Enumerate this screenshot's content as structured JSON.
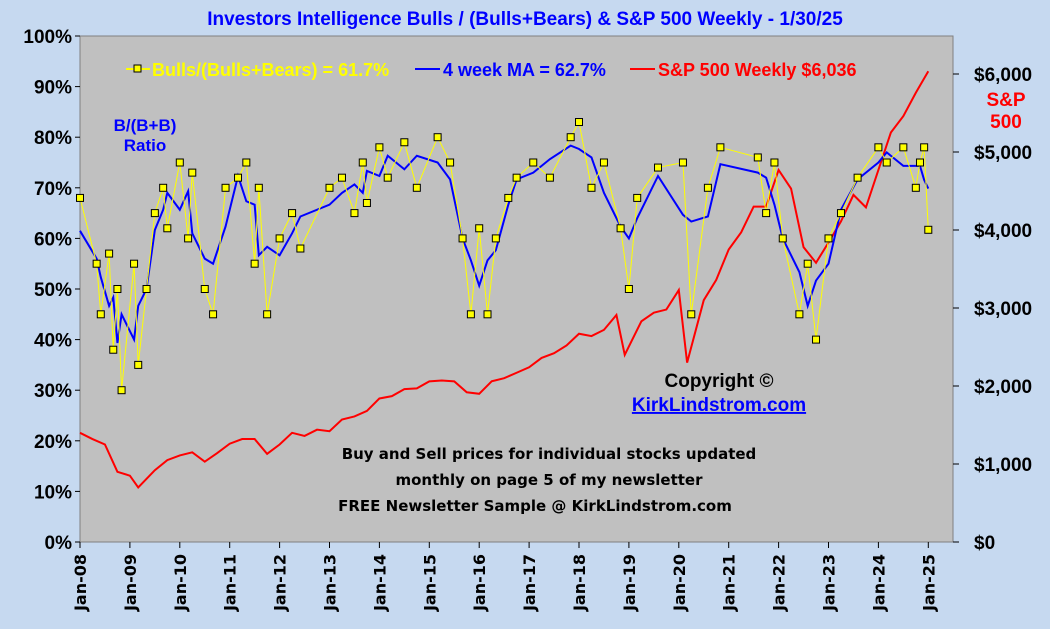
{
  "chart_data": {
    "type": "line",
    "title": "Investors Intelligence Bulls / (Bulls+Bears) & S&P 500 Weekly  -  1/30/25",
    "y_left": {
      "label_lines": [
        "B/(B+B)",
        "Ratio"
      ],
      "ylim": [
        0,
        100
      ],
      "ticks": [
        "0%",
        "10%",
        "20%",
        "30%",
        "40%",
        "50%",
        "60%",
        "70%",
        "80%",
        "90%",
        "100%"
      ]
    },
    "y_right": {
      "label_lines": [
        "S&P",
        "500"
      ],
      "ylim": [
        0,
        6500
      ],
      "ticks": [
        "$0",
        "$1,000",
        "$2,000",
        "$3,000",
        "$4,000",
        "$5,000",
        "$6,000"
      ]
    },
    "x_ticks": [
      "Jan-08",
      "Jan-09",
      "Jan-10",
      "Jan-11",
      "Jan-12",
      "Jan-13",
      "Jan-14",
      "Jan-15",
      "Jan-16",
      "Jan-17",
      "Jan-18",
      "Jan-19",
      "Jan-20",
      "Jan-21",
      "Jan-22",
      "Jan-23",
      "Jan-24",
      "Jan-25"
    ],
    "grid": false,
    "legend_position": "top",
    "series": [
      {
        "name": "Bulls/(Bulls+Bears) = 61.7%",
        "color": "#ffff00",
        "marker": "square",
        "axis": "left",
        "x": [
          "2008-01",
          "2008-05",
          "2008-06",
          "2008-08",
          "2008-09",
          "2008-10",
          "2008-11",
          "2009-02",
          "2009-03",
          "2009-05",
          "2009-07",
          "2009-09",
          "2009-10",
          "2010-01",
          "2010-03",
          "2010-04",
          "2010-07",
          "2010-09",
          "2010-12",
          "2011-03",
          "2011-05",
          "2011-07",
          "2011-08",
          "2011-10",
          "2012-01",
          "2012-04",
          "2012-06",
          "2013-01",
          "2013-04",
          "2013-07",
          "2013-09",
          "2013-10",
          "2014-01",
          "2014-03",
          "2014-07",
          "2014-10",
          "2015-03",
          "2015-06",
          "2015-09",
          "2015-11",
          "2016-01",
          "2016-03",
          "2016-05",
          "2016-08",
          "2016-10",
          "2017-02",
          "2017-06",
          "2017-11",
          "2018-01",
          "2018-04",
          "2018-07",
          "2018-11",
          "2019-01",
          "2019-03",
          "2019-08",
          "2020-02",
          "2020-04",
          "2020-08",
          "2020-11",
          "2021-08",
          "2021-10",
          "2021-12",
          "2022-02",
          "2022-06",
          "2022-08",
          "2022-10",
          "2023-01",
          "2023-04",
          "2023-08",
          "2024-01",
          "2024-03",
          "2024-07",
          "2024-10",
          "2024-11",
          "2024-12",
          "2025-01"
        ],
        "values": [
          68,
          55,
          45,
          57,
          38,
          50,
          30,
          55,
          35,
          50,
          65,
          70,
          62,
          75,
          60,
          73,
          50,
          45,
          70,
          72,
          75,
          55,
          70,
          45,
          60,
          65,
          58,
          70,
          72,
          65,
          75,
          67,
          78,
          72,
          79,
          70,
          80,
          75,
          60,
          45,
          62,
          45,
          60,
          68,
          72,
          75,
          72,
          80,
          83,
          70,
          75,
          62,
          50,
          68,
          74,
          75,
          45,
          70,
          78,
          76,
          65,
          75,
          60,
          45,
          55,
          40,
          60,
          65,
          72,
          78,
          75,
          78,
          70,
          75,
          78,
          61.7
        ]
      },
      {
        "name": "4 week MA = 62.7%",
        "color": "#0000ff",
        "axis": "left"
      },
      {
        "name": "S&P 500 Weekly $6,036",
        "color": "#ff0000",
        "axis": "right",
        "x": [
          "2008-01",
          "2008-04",
          "2008-07",
          "2008-10",
          "2009-01",
          "2009-03",
          "2009-07",
          "2009-10",
          "2010-01",
          "2010-04",
          "2010-07",
          "2010-10",
          "2011-01",
          "2011-04",
          "2011-07",
          "2011-10",
          "2012-01",
          "2012-04",
          "2012-07",
          "2012-10",
          "2013-01",
          "2013-04",
          "2013-07",
          "2013-10",
          "2014-01",
          "2014-04",
          "2014-07",
          "2014-10",
          "2015-01",
          "2015-04",
          "2015-07",
          "2015-10",
          "2016-01",
          "2016-04",
          "2016-07",
          "2016-10",
          "2017-01",
          "2017-04",
          "2017-07",
          "2017-10",
          "2018-01",
          "2018-04",
          "2018-07",
          "2018-10",
          "2018-12",
          "2019-04",
          "2019-07",
          "2019-10",
          "2020-01",
          "2020-03",
          "2020-07",
          "2020-10",
          "2021-01",
          "2021-04",
          "2021-07",
          "2021-10",
          "2022-01",
          "2022-04",
          "2022-07",
          "2022-10",
          "2023-01",
          "2023-04",
          "2023-07",
          "2023-10",
          "2024-01",
          "2024-04",
          "2024-07",
          "2024-10",
          "2025-01"
        ],
        "values": [
          1400,
          1320,
          1250,
          900,
          850,
          700,
          920,
          1050,
          1110,
          1150,
          1030,
          1140,
          1260,
          1320,
          1320,
          1130,
          1250,
          1400,
          1360,
          1440,
          1420,
          1570,
          1610,
          1680,
          1840,
          1870,
          1960,
          1970,
          2060,
          2070,
          2060,
          1920,
          1900,
          2060,
          2100,
          2170,
          2240,
          2360,
          2420,
          2520,
          2670,
          2640,
          2720,
          2910,
          2400,
          2830,
          2940,
          2980,
          3230,
          2300,
          3100,
          3360,
          3750,
          3970,
          4300,
          4300,
          4770,
          4530,
          3780,
          3580,
          3840,
          4110,
          4450,
          4290,
          4770,
          5250,
          5460,
          5760,
          6036
        ]
      }
    ],
    "annotations": {
      "copyright": "Copyright ©",
      "website": "KirkLindstrom.com",
      "note_lines": [
        "Buy and Sell prices for individual stocks updated",
        "monthly on page 5 of my newsletter",
        "FREE Newsletter Sample @ KirkLindstrom.com"
      ]
    }
  }
}
